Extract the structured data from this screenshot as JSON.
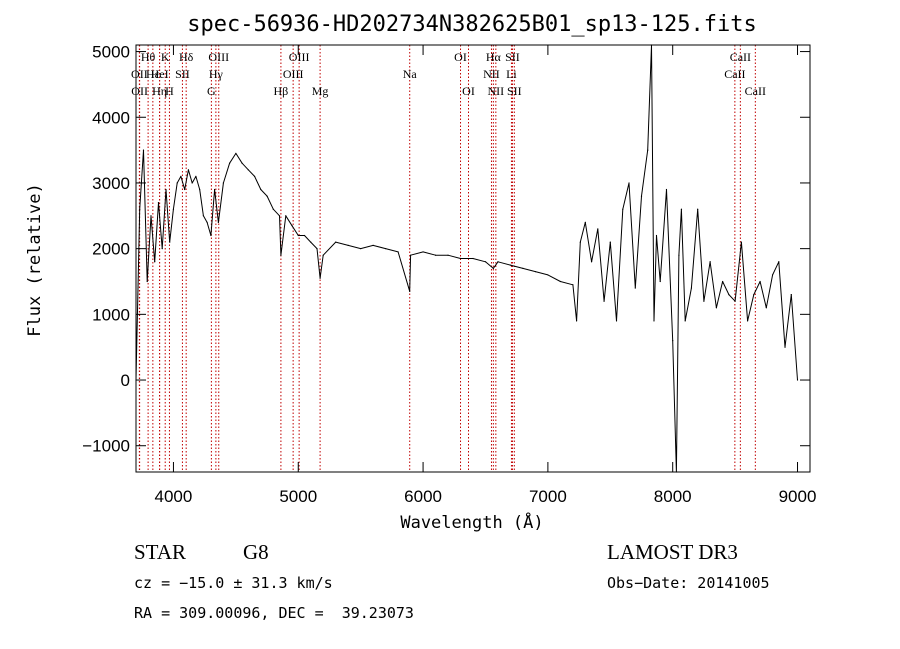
{
  "chart_data": {
    "type": "line",
    "title": "spec-56936-HD202734N382625B01_sp13-125.fits",
    "xlabel": "Wavelength (Å)",
    "ylabel": "Flux (relative)",
    "xlim": [
      3700,
      9100
    ],
    "ylim": [
      -1400,
      5100
    ],
    "xticks": [
      4000,
      5000,
      6000,
      7000,
      8000,
      9000
    ],
    "yticks": [
      -1000,
      0,
      1000,
      2000,
      3000,
      4000,
      5000
    ],
    "grid": false,
    "legend": "none",
    "line_color": "#000000",
    "marker_line_color": "#c00000",
    "series": [
      {
        "x": [
          3700,
          3730,
          3760,
          3790,
          3820,
          3850,
          3880,
          3910,
          3940,
          3970,
          4000,
          4030,
          4060,
          4090,
          4120,
          4150,
          4180,
          4210,
          4240,
          4270,
          4300,
          4330,
          4360,
          4400,
          4450,
          4500,
          4550,
          4600,
          4650,
          4700,
          4750,
          4800,
          4850,
          4861,
          4900,
          4950,
          5000,
          5050,
          5100,
          5150,
          5175,
          5200,
          5300,
          5400,
          5500,
          5600,
          5700,
          5800,
          5893,
          5900,
          6000,
          6100,
          6200,
          6300,
          6400,
          6500,
          6563,
          6600,
          6700,
          6800,
          6900,
          7000,
          7100,
          7200,
          7230,
          7260,
          7300,
          7350,
          7400,
          7450,
          7500,
          7550,
          7600,
          7650,
          7700,
          7750,
          7800,
          7830,
          7850,
          7870,
          7900,
          7950,
          8000,
          8030,
          8050,
          8070,
          8100,
          8150,
          8200,
          8250,
          8300,
          8350,
          8400,
          8450,
          8500,
          8550,
          8600,
          8650,
          8700,
          8750,
          8800,
          8850,
          8900,
          8950,
          9000
        ],
        "y": [
          0,
          2600,
          3500,
          1500,
          2500,
          1800,
          2700,
          2000,
          2900,
          2100,
          2600,
          3000,
          3100,
          2900,
          3200,
          3000,
          3100,
          2900,
          2500,
          2400,
          2200,
          2900,
          2400,
          3000,
          3300,
          3450,
          3300,
          3200,
          3100,
          2900,
          2800,
          2600,
          2500,
          1900,
          2500,
          2350,
          2200,
          2200,
          2100,
          2000,
          1550,
          1900,
          2100,
          2050,
          2000,
          2050,
          2000,
          1950,
          1350,
          1900,
          1950,
          1900,
          1900,
          1850,
          1850,
          1800,
          1700,
          1800,
          1750,
          1700,
          1650,
          1600,
          1500,
          1450,
          900,
          2100,
          2400,
          1800,
          2300,
          1200,
          2100,
          900,
          2600,
          3000,
          1400,
          2800,
          3500,
          5100,
          900,
          2200,
          1500,
          2900,
          600,
          -1400,
          1900,
          2600,
          900,
          1400,
          2600,
          1200,
          1800,
          1100,
          1500,
          1300,
          1200,
          2100,
          900,
          1300,
          1500,
          1100,
          1600,
          1800,
          500,
          1300,
          0
        ]
      }
    ],
    "spectral_lines": [
      {
        "label": "Hθ",
        "x": 3797,
        "row": 0
      },
      {
        "label": "OII",
        "x": 3727,
        "row": 1
      },
      {
        "label": "OII",
        "x": 3729,
        "row": 2
      },
      {
        "label": "Hε",
        "x": 3835,
        "row": 1
      },
      {
        "label": "Hη",
        "x": 3889,
        "row": 2
      },
      {
        "label": "K",
        "x": 3934,
        "row": 0
      },
      {
        "label": "H",
        "x": 3968,
        "row": 2
      },
      {
        "label": "HeI",
        "x": 3889,
        "row": 1
      },
      {
        "label": "SII",
        "x": 4072,
        "row": 1
      },
      {
        "label": "Hδ",
        "x": 4102,
        "row": 0
      },
      {
        "label": "OIII",
        "x": 4363,
        "row": 0
      },
      {
        "label": "Hγ",
        "x": 4340,
        "row": 1
      },
      {
        "label": "G",
        "x": 4304,
        "row": 2
      },
      {
        "label": "Hβ",
        "x": 4861,
        "row": 2
      },
      {
        "label": "OIII",
        "x": 5007,
        "row": 0
      },
      {
        "label": "OIII",
        "x": 4959,
        "row": 1
      },
      {
        "label": "Mg",
        "x": 5175,
        "row": 2
      },
      {
        "label": "Na",
        "x": 5893,
        "row": 1
      },
      {
        "label": "OI",
        "x": 6300,
        "row": 0
      },
      {
        "label": "OI",
        "x": 6364,
        "row": 2
      },
      {
        "label": "Hα",
        "x": 6563,
        "row": 0
      },
      {
        "label": "NII",
        "x": 6548,
        "row": 1
      },
      {
        "label": "NII",
        "x": 6583,
        "row": 2
      },
      {
        "label": "SII",
        "x": 6716,
        "row": 0
      },
      {
        "label": "Li",
        "x": 6708,
        "row": 1
      },
      {
        "label": "SII",
        "x": 6731,
        "row": 2
      },
      {
        "label": "CaII",
        "x": 8542,
        "row": 0
      },
      {
        "label": "CaII",
        "x": 8498,
        "row": 1
      },
      {
        "label": "CaII",
        "x": 8662,
        "row": 2
      }
    ]
  },
  "info": {
    "object_class": "STAR",
    "subclass": "G8",
    "survey": "LAMOST DR3",
    "cz": "cz = −15.0 ± 31.3 km/s",
    "obs_date": "Obs−Date: 20141005",
    "coords": "RA = 309.00096, DEC =  39.23073"
  }
}
